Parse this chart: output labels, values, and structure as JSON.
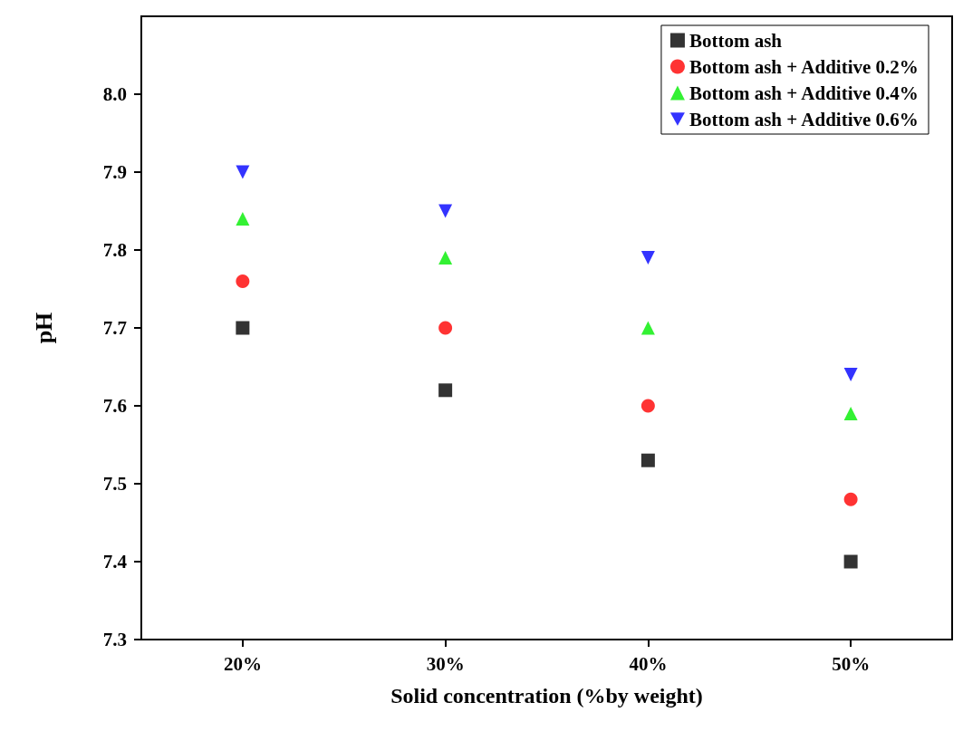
{
  "chart_data": {
    "type": "scatter",
    "xlabel": "Solid concentration (%by weight)",
    "ylabel": "pH",
    "categories": [
      "20%",
      "30%",
      "40%",
      "50%"
    ],
    "series": [
      {
        "name": "Bottom ash",
        "color": "#000000",
        "marker": "square",
        "values": [
          7.7,
          7.62,
          7.53,
          7.4
        ]
      },
      {
        "name": "Bottom ash + Additive 0.2%",
        "color": "#ff0000",
        "marker": "circle",
        "values": [
          7.76,
          7.7,
          7.6,
          7.48
        ]
      },
      {
        "name": "Bottom ash + Additive 0.4%",
        "color": "#00ee00",
        "marker": "triangle",
        "values": [
          7.84,
          7.79,
          7.7,
          7.59
        ]
      },
      {
        "name": "Bottom ash + Additive 0.6%",
        "color": "#0000ff",
        "marker": "triangle-down",
        "values": [
          7.9,
          7.85,
          7.79,
          7.64
        ]
      }
    ],
    "ylim": [
      7.3,
      8.1
    ],
    "yticks": [
      7.3,
      7.4,
      7.5,
      7.6,
      7.7,
      7.8,
      7.9,
      {
        "value": 8,
        "label": "8.0"
      }
    ],
    "grid": false,
    "legend": "top right"
  }
}
